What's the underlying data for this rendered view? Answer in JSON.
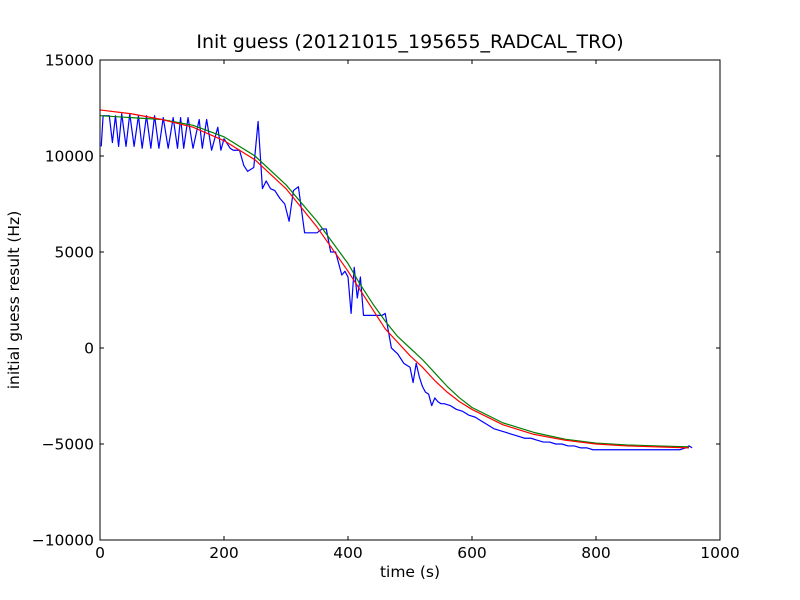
{
  "chart_data": {
    "type": "line",
    "title": "Init guess (20121015_195655_RADCAL_TRO)",
    "xlabel": "time (s)",
    "ylabel": "initial guess result (Hz)",
    "xlim": [
      0,
      1000
    ],
    "ylim": [
      -10000,
      15000
    ],
    "xticks": [
      0,
      200,
      400,
      600,
      800,
      1000
    ],
    "xtick_labels": [
      "0",
      "200",
      "400",
      "600",
      "800",
      "1000"
    ],
    "yticks": [
      -10000,
      -5000,
      0,
      5000,
      10000,
      15000
    ],
    "ytick_labels": [
      "−10000",
      "−5000",
      "0",
      "5000",
      "10000",
      "15000"
    ],
    "grid": false,
    "legend": "none",
    "series": [
      {
        "color": "#0000ff",
        "description": "raw estimates (noisy)",
        "x": [
          2,
          5,
          15,
          20,
          25,
          30,
          35,
          42,
          48,
          55,
          62,
          68,
          75,
          82,
          88,
          95,
          102,
          110,
          118,
          125,
          130,
          135,
          142,
          150,
          160,
          165,
          172,
          180,
          190,
          195,
          200,
          210,
          215,
          225,
          232,
          238,
          248,
          255,
          262,
          268,
          275,
          282,
          290,
          298,
          305,
          312,
          320,
          330,
          340,
          350,
          358,
          365,
          372,
          380,
          390,
          395,
          400,
          405,
          410,
          415,
          420,
          425,
          430,
          435,
          440,
          445,
          450,
          455,
          460,
          470,
          480,
          490,
          500,
          505,
          510,
          515,
          520,
          525,
          530,
          535,
          540,
          545,
          550,
          555,
          565,
          575,
          585,
          590,
          595,
          605,
          615,
          625,
          635,
          645,
          655,
          665,
          675,
          685,
          695,
          705,
          715,
          725,
          735,
          745,
          755,
          765,
          775,
          785,
          795,
          805,
          815,
          825,
          835,
          845,
          855,
          865,
          875,
          885,
          895,
          905,
          915,
          925,
          935,
          945,
          950,
          955
        ],
        "y": [
          10500,
          12100,
          12100,
          10700,
          12100,
          10500,
          12200,
          10500,
          12200,
          10500,
          12100,
          10400,
          12100,
          10400,
          12100,
          10400,
          12000,
          10400,
          12000,
          10400,
          12000,
          10400,
          12000,
          10400,
          11900,
          10400,
          11900,
          10300,
          11500,
          10300,
          10900,
          10400,
          10300,
          10300,
          9500,
          9200,
          9400,
          11800,
          8300,
          8700,
          8300,
          8200,
          7800,
          7500,
          6600,
          8200,
          8400,
          6000,
          6000,
          6000,
          6200,
          6200,
          5000,
          5000,
          3800,
          4000,
          3700,
          1800,
          4200,
          2600,
          3700,
          1700,
          1700,
          1700,
          1700,
          1700,
          1700,
          1700,
          1800,
          0,
          -300,
          -800,
          -1000,
          -1800,
          -800,
          -1500,
          -2000,
          -2300,
          -2400,
          -3000,
          -2600,
          -2800,
          -2900,
          -2900,
          -3000,
          -3200,
          -3300,
          -3400,
          -3500,
          -3600,
          -3800,
          -4000,
          -4200,
          -4300,
          -4400,
          -4500,
          -4600,
          -4700,
          -4700,
          -4800,
          -4900,
          -4900,
          -5000,
          -5000,
          -5100,
          -5100,
          -5200,
          -5200,
          -5300,
          -5300,
          -5300,
          -5300,
          -5300,
          -5300,
          -5300,
          -5300,
          -5300,
          -5300,
          -5300,
          -5300,
          -5300,
          -5300,
          -5300,
          -5200,
          -5100,
          -5200
        ]
      },
      {
        "color": "#008000",
        "description": "smoothed",
        "x": [
          0,
          50,
          100,
          150,
          200,
          250,
          300,
          350,
          400,
          420,
          440,
          460,
          480,
          500,
          520,
          540,
          560,
          580,
          600,
          650,
          700,
          750,
          800,
          850,
          900,
          950
        ],
        "y": [
          12100,
          12000,
          11900,
          11600,
          11000,
          10000,
          8500,
          6600,
          4400,
          3300,
          2300,
          1400,
          600,
          0,
          -600,
          -1300,
          -2000,
          -2600,
          -3100,
          -3900,
          -4400,
          -4750,
          -4950,
          -5050,
          -5100,
          -5150
        ]
      },
      {
        "color": "#ff0000",
        "description": "fitted curve",
        "x": [
          0,
          50,
          100,
          150,
          200,
          250,
          300,
          350,
          400,
          420,
          440,
          460,
          480,
          500,
          520,
          540,
          560,
          580,
          600,
          650,
          700,
          750,
          800,
          850,
          900,
          950
        ],
        "y": [
          12400,
          12200,
          11900,
          11500,
          10800,
          9800,
          8300,
          6300,
          4000,
          3000,
          2000,
          1000,
          300,
          -400,
          -1000,
          -1700,
          -2300,
          -2800,
          -3200,
          -4000,
          -4500,
          -4800,
          -5000,
          -5100,
          -5150,
          -5200
        ]
      }
    ]
  }
}
